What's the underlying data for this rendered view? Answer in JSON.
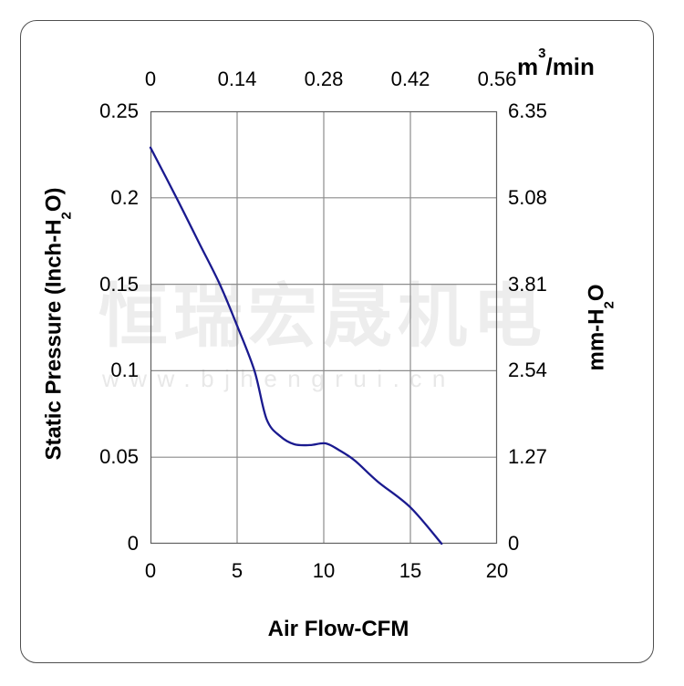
{
  "watermark": {
    "line1": "恒瑞宏晟机电",
    "line2": "www.bjhengrui.cn"
  },
  "chart_data": {
    "type": "line",
    "title": "",
    "x_axis_bottom": {
      "label": "Air Flow-CFM",
      "ticks": [
        "0",
        "5",
        "10",
        "15",
        "20"
      ],
      "range": [
        0,
        20
      ]
    },
    "x_axis_top": {
      "unit_base": "m",
      "unit_sup": "3",
      "unit_rest": "/min",
      "ticks": [
        "0",
        "0.14",
        "0.28",
        "0.42",
        "0.56"
      ],
      "range": [
        0,
        0.56
      ]
    },
    "y_axis_left": {
      "label_main": "Static Pressure (Inch-H",
      "label_sub": "2",
      "label_end": "O)",
      "ticks": [
        "0.25",
        "0.2",
        "0.15",
        "0.1",
        "0.05",
        "0"
      ],
      "range": [
        0,
        0.25
      ]
    },
    "y_axis_right": {
      "label_main": "mm-H",
      "label_sub": "2",
      "label_end": "O",
      "ticks": [
        "6.35",
        "5.08",
        "3.81",
        "2.54",
        "1.27",
        "0"
      ],
      "range": [
        0,
        6.35
      ]
    },
    "grid": {
      "x_lines_cfm": [
        5,
        10,
        15
      ],
      "y_lines_inchH2O": [
        0.05,
        0.1,
        0.15,
        0.2
      ],
      "color": "#8c8c8c"
    },
    "series": [
      {
        "name": "static-pressure-curve",
        "color": "#1a1a8f",
        "points_cfm_inchH2O": [
          [
            0,
            0.229
          ],
          [
            1.5,
            0.2
          ],
          [
            2.8,
            0.174
          ],
          [
            4,
            0.15
          ],
          [
            5,
            0.126
          ],
          [
            6,
            0.1
          ],
          [
            6.7,
            0.072
          ],
          [
            7.5,
            0.062
          ],
          [
            8.3,
            0.0575
          ],
          [
            9.2,
            0.057
          ],
          [
            10.1,
            0.058
          ],
          [
            10.9,
            0.054
          ],
          [
            11.8,
            0.048
          ],
          [
            13.1,
            0.036
          ],
          [
            15,
            0.021
          ],
          [
            16.8,
            0
          ]
        ]
      }
    ],
    "plot_border_color": "#606060",
    "xlim": [
      0,
      20
    ],
    "ylim": [
      0,
      0.25
    ]
  }
}
